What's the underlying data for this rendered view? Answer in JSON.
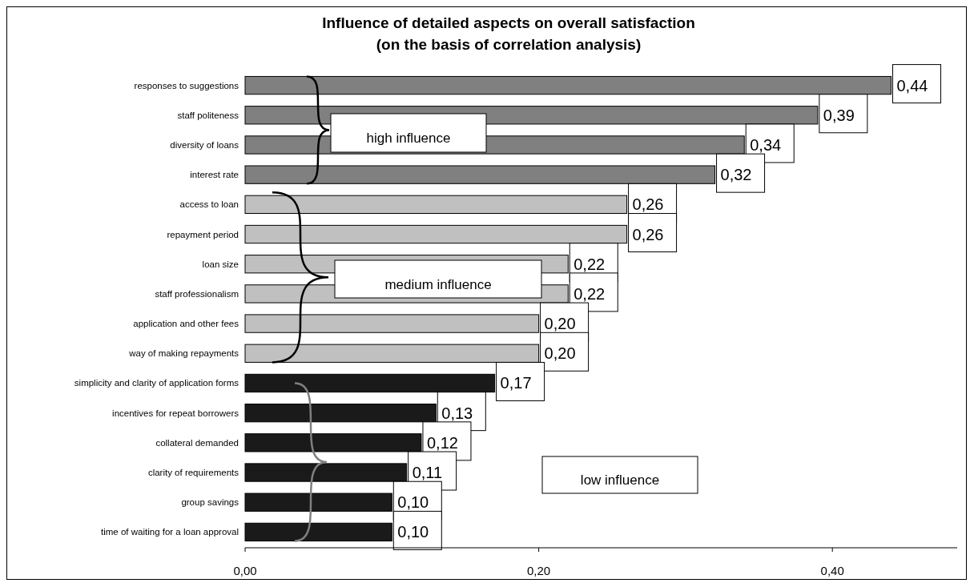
{
  "chart_data": {
    "type": "bar",
    "orientation": "horizontal",
    "title": "Influence of detailed aspects on overall satisfaction\n(on the basis of correlation analysis)",
    "categories": [
      "responses to suggestions",
      "staff politeness",
      "diversity of loans",
      "interest rate",
      "access to loan",
      "repayment period",
      "loan size",
      "staff professionalism",
      "application and other fees",
      "way of making repayments",
      "simplicity and clarity of application forms",
      "incentives for repeat borrowers",
      "collateral demanded",
      "clarity of requirements",
      "group savings",
      "time of waiting for a loan approval"
    ],
    "values": [
      0.44,
      0.39,
      0.34,
      0.32,
      0.26,
      0.26,
      0.22,
      0.22,
      0.2,
      0.2,
      0.17,
      0.13,
      0.12,
      0.11,
      0.1,
      0.1
    ],
    "value_labels": [
      "0,44",
      "0,39",
      "0,34",
      "0,32",
      "0,26",
      "0,26",
      "0,22",
      "0,22",
      "0,20",
      "0,20",
      "0,17",
      "0,13",
      "0,12",
      "0,11",
      "0,10",
      "0,10"
    ],
    "colors": [
      "#808080",
      "#808080",
      "#808080",
      "#808080",
      "#c0c0c0",
      "#c0c0c0",
      "#c0c0c0",
      "#c0c0c0",
      "#c0c0c0",
      "#c0c0c0",
      "#1a1a1a",
      "#1a1a1a",
      "#1a1a1a",
      "#1a1a1a",
      "#1a1a1a",
      "#1a1a1a"
    ],
    "xlim": [
      0,
      0.485
    ],
    "xticks": [
      {
        "value": 0,
        "label": "0,00"
      },
      {
        "value": 0.2,
        "label": "0,20"
      },
      {
        "value": 0.4,
        "label": "0,40"
      }
    ],
    "annotations": [
      "high influence",
      "medium influence",
      "low influence"
    ]
  }
}
